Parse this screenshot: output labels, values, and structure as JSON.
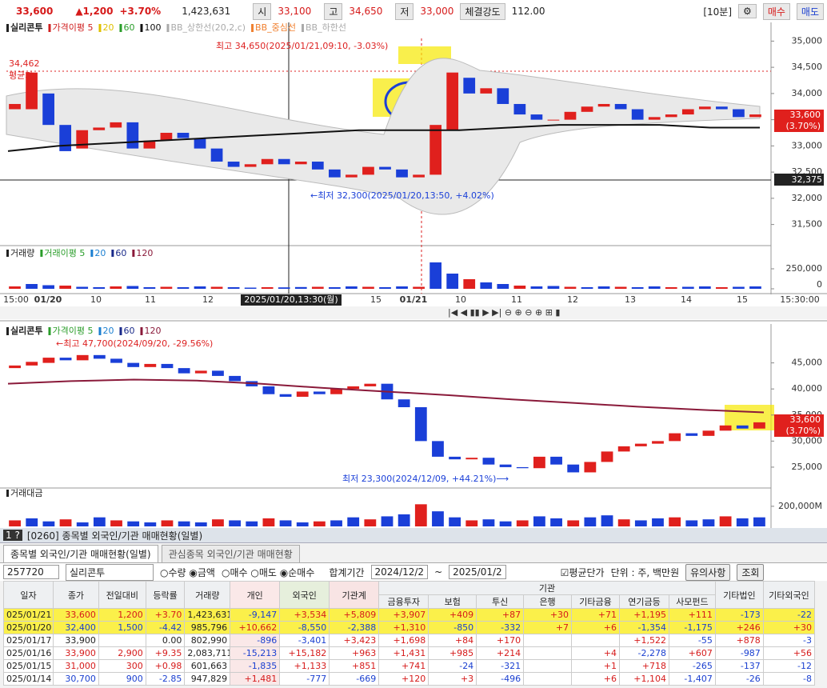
{
  "top_bar": {
    "price": "33,600",
    "change": "▲1,200",
    "rate": "+3.70%",
    "volume": "1,423,631",
    "open_label": "시",
    "open": "33,100",
    "high_label": "고",
    "high": "34,650",
    "low_label": "저",
    "low": "33,000",
    "strength_label": "체결강도",
    "strength": "112.00",
    "interval": "[10분]",
    "buy": "매수",
    "sell": "매도"
  },
  "intraday_chart": {
    "type": "candlestick",
    "legend": [
      "실리콘투",
      "가격이평 5",
      "20",
      "60",
      "100",
      "BB_상한선(20,2,c)",
      "BB_중심선",
      "BB_하한선"
    ],
    "ylim": [
      31250,
      35250
    ],
    "yticks": [
      {
        "value": 35000,
        "label": "35,000"
      },
      {
        "value": 34500,
        "label": "34,500"
      },
      {
        "value": 34000,
        "label": "34,000"
      },
      {
        "value": 33500,
        "label": "33,500"
      },
      {
        "value": 33000,
        "label": "33,000"
      },
      {
        "value": 32500,
        "label": "32,500"
      },
      {
        "value": 32000,
        "label": "32,000"
      },
      {
        "value": 31500,
        "label": "31,500"
      }
    ],
    "open": [
      33700,
      33700,
      34000,
      33400,
      32950,
      33300,
      33350,
      33450,
      32950,
      33100,
      33250,
      33150,
      32950,
      32700,
      32600,
      32650,
      32750,
      32650,
      32700,
      32550,
      32400,
      32450,
      32600,
      32550,
      32400,
      32450,
      33300,
      34300,
      34000,
      34100,
      33800,
      33600,
      33500,
      33500,
      33650,
      33750,
      33800,
      33700,
      33500,
      33550,
      33600,
      33700,
      33750,
      33700,
      33550
    ],
    "close": [
      33800,
      34400,
      33400,
      32900,
      33300,
      33350,
      33450,
      32950,
      33100,
      33250,
      33150,
      32950,
      32700,
      32600,
      32650,
      32750,
      32650,
      32700,
      32550,
      32400,
      32450,
      32600,
      32550,
      32400,
      32450,
      33400,
      34400,
      34000,
      34100,
      33800,
      33600,
      33500,
      33500,
      33650,
      33750,
      33800,
      33700,
      33500,
      33550,
      33600,
      33700,
      33750,
      33700,
      33550,
      33600
    ],
    "ma100": [
      32900,
      33000,
      33050,
      33100,
      33150,
      33200,
      33250,
      33300,
      33300,
      33300,
      33350,
      33400,
      33400,
      33400,
      33350,
      33350
    ],
    "annotations": {
      "high": "최고 34,650(2025/01/21,09:10, -3.03%)",
      "low": "←최저 32,300(2025/01/20,13:50, +4.02%)",
      "avg_value": "34,462",
      "avg_label": "평균가",
      "cursor_value": "32,375",
      "last": "33,600",
      "last_rate": "(3.70%)"
    },
    "volume": {
      "legend": [
        "거래량",
        "거래이평 5",
        "20",
        "60",
        "120"
      ],
      "ylim": [
        0,
        470000
      ],
      "yticks": [
        {
          "value": 250000,
          "label": "250,000"
        },
        0
      ],
      "values": [
        30000,
        60000,
        45000,
        40000,
        25000,
        20000,
        30000,
        35000,
        20000,
        25000,
        20000,
        30000,
        25000,
        20000,
        15000,
        20000,
        18000,
        22000,
        25000,
        20000,
        30000,
        25000,
        20000,
        30000,
        25000,
        330000,
        190000,
        120000,
        80000,
        60000,
        40000,
        30000,
        35000,
        25000,
        20000,
        30000,
        25000,
        20000,
        30000,
        20000,
        25000,
        30000,
        20000,
        25000,
        30000
      ]
    },
    "time_labels": [
      "15:00",
      "01/20",
      "10",
      "11",
      "12",
      "2025/01/20,13:30(월)",
      "15",
      "01/21",
      "10",
      "11",
      "12",
      "13",
      "14",
      "15",
      "15:30:00"
    ]
  },
  "daily_chart": {
    "type": "candlestick",
    "legend": [
      "실리콘투",
      "가격이평 5",
      "20",
      "60",
      "120"
    ],
    "ylim": [
      21000,
      52000
    ],
    "yticks": [
      {
        "value": 45000,
        "label": "45,000"
      },
      {
        "value": 40000,
        "label": "40,000"
      },
      {
        "value": 35000,
        "label": "35,000"
      },
      {
        "value": 30000,
        "label": "30,000"
      },
      {
        "value": 25000,
        "label": "25,000"
      }
    ],
    "open": [
      44000,
      44500,
      45000,
      46000,
      45500,
      46500,
      45800,
      45000,
      44200,
      44800,
      44000,
      43000,
      43500,
      42500,
      41500,
      40500,
      39000,
      38500,
      39500,
      39000,
      40000,
      40500,
      41000,
      38000,
      36500,
      30000,
      27000,
      26500,
      26800,
      25500,
      25000,
      24800,
      27000,
      25500,
      24000,
      26000,
      28000,
      29000,
      29500,
      30000,
      31500,
      31000,
      32000,
      33000,
      32400
    ],
    "close": [
      44500,
      45200,
      46000,
      45500,
      46500,
      45800,
      45000,
      44200,
      44800,
      44000,
      43000,
      43500,
      42500,
      41500,
      40500,
      39000,
      38500,
      39500,
      39000,
      40000,
      40500,
      41000,
      38000,
      36500,
      30000,
      27000,
      26500,
      26800,
      25500,
      25000,
      24800,
      27000,
      25500,
      24000,
      26000,
      28000,
      29000,
      29500,
      30000,
      31500,
      31000,
      32000,
      33000,
      32400,
      33600
    ],
    "ma120": [
      41000,
      41500,
      41800,
      41600,
      41000,
      40200,
      39500,
      38800,
      38000,
      37300,
      36600,
      36000,
      35500
    ],
    "annotations": {
      "high": "←최고 47,700(2024/09/20, -29.56%)",
      "low": "최저 23,300(2024/12/09, +44.21%)⟶",
      "last": "33,600",
      "last_rate": "(3.70%)"
    },
    "volume": {
      "legend": [
        "거래대금"
      ],
      "ylim": [
        0,
        350000
      ],
      "yticks": [
        {
          "value": 200000,
          "label": "200,000M"
        }
      ],
      "values": [
        60000,
        80000,
        50000,
        70000,
        40000,
        90000,
        60000,
        50000,
        40000,
        60000,
        50000,
        40000,
        70000,
        60000,
        50000,
        80000,
        60000,
        40000,
        50000,
        60000,
        90000,
        70000,
        100000,
        120000,
        220000,
        150000,
        90000,
        60000,
        70000,
        50000,
        60000,
        100000,
        80000,
        60000,
        90000,
        110000,
        70000,
        60000,
        80000,
        90000,
        60000,
        70000,
        100000,
        80000,
        90000
      ]
    }
  },
  "panel": {
    "window_title": "[0260] 종목별 외국인/기관 매매현황(일별)",
    "tabs": [
      "종목별 외국인/기관 매매현황(일별)",
      "관심종목 외국인/기관 매매현황"
    ],
    "controls": {
      "code": "257720",
      "name": "실리콘투",
      "unit_options": [
        "수량",
        "금액"
      ],
      "side_options": [
        "매수",
        "매도",
        "순매수"
      ],
      "period_label": "합계기간",
      "from": "2024/12/2",
      "tilde": "~",
      "to": "2025/01/2",
      "avg_label": "평균단가",
      "unit_note": "단위 : 주, 백만원",
      "btn1": "유의사항",
      "btn2": "조회"
    },
    "table": {
      "header_main": [
        "일자",
        "종가",
        "전일대비",
        "등락률",
        "거래량",
        "개인",
        "외국인",
        "기관계"
      ],
      "header_group": "기관",
      "header_sub": [
        "금융투자",
        "보험",
        "투신",
        "은행",
        "기타금융",
        "연기금등",
        "사모펀드"
      ],
      "header_tail": [
        "기타법인",
        "기타외국인"
      ],
      "rows": [
        [
          "025/01/21",
          "33,600",
          "1,200",
          "+3.70",
          "1,423,631",
          "-9,147",
          "+3,534",
          "+5,809",
          "+3,907",
          "+409",
          "+87",
          "+30",
          "+71",
          "+1,195",
          "+111",
          "-173",
          "-22"
        ],
        [
          "025/01/20",
          "32,400",
          "1,500",
          "-4.42",
          "985,796",
          "+10,662",
          "-8,550",
          "-2,388",
          "+1,310",
          "-850",
          "-332",
          "+7",
          "+6",
          "-1,354",
          "-1,175",
          "+246",
          "+30"
        ],
        [
          "025/01/17",
          "33,900",
          null,
          "0.00",
          "802,990",
          "-896",
          "-3,401",
          "+3,423",
          "+1,698",
          "+84",
          "+170",
          null,
          null,
          "+1,522",
          "-55",
          "+878",
          "-3"
        ],
        [
          "025/01/16",
          "33,900",
          "2,900",
          "+9.35",
          "2,083,711",
          "-15,213",
          "+15,182",
          "+963",
          "+1,431",
          "+985",
          "+214",
          null,
          "+4",
          "-2,278",
          "+607",
          "-987",
          "+56"
        ],
        [
          "025/01/15",
          "31,000",
          "300",
          "+0.98",
          "601,663",
          "-1,835",
          "+1,133",
          "+851",
          "+741",
          "-24",
          "-321",
          null,
          "+1",
          "+718",
          "-265",
          "-137",
          "-12"
        ],
        [
          "025/01/14",
          "30,700",
          "900",
          "-2.85",
          "947,829",
          "+1,481",
          "-777",
          "-669",
          "+120",
          "+3",
          "-496",
          null,
          "+6",
          "+1,104",
          "-1,407",
          "-26",
          "-8"
        ]
      ]
    }
  }
}
